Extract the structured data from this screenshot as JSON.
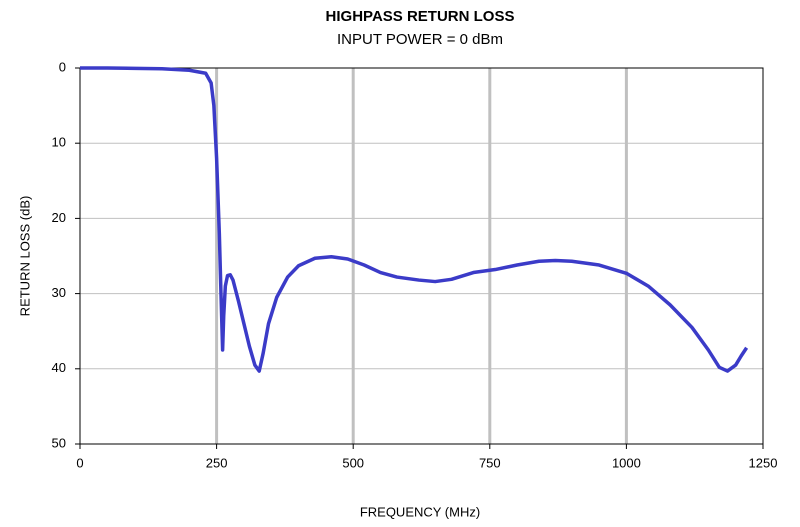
{
  "chart_data": {
    "type": "line",
    "title": "HIGHPASS RETURN LOSS",
    "subtitle": "INPUT POWER = 0 dBm",
    "x_label": "FREQUENCY (MHz)",
    "y_label": "RETURN LOSS (dB)",
    "x": [
      0,
      50,
      100,
      150,
      200,
      230,
      240,
      245,
      250,
      255,
      258,
      261,
      263,
      266,
      270,
      275,
      280,
      290,
      300,
      310,
      320,
      328,
      335,
      345,
      360,
      380,
      400,
      430,
      460,
      490,
      520,
      550,
      580,
      620,
      650,
      680,
      720,
      760,
      800,
      840,
      870,
      900,
      950,
      1000,
      1040,
      1080,
      1120,
      1150,
      1170,
      1185,
      1200,
      1210,
      1220
    ],
    "series": [
      {
        "name": "Return Loss",
        "color": "#3b3bc8",
        "values": [
          0,
          0,
          0.05,
          0.1,
          0.3,
          0.7,
          2,
          5,
          12,
          22,
          30,
          37.5,
          33,
          29,
          27.6,
          27.5,
          28.2,
          31,
          34,
          37,
          39.5,
          40.3,
          38,
          34,
          30.5,
          27.8,
          26.3,
          25.3,
          25.1,
          25.4,
          26.2,
          27.2,
          27.8,
          28.2,
          28.4,
          28.1,
          27.2,
          26.8,
          26.2,
          25.7,
          25.6,
          25.7,
          26.2,
          27.3,
          29,
          31.5,
          34.5,
          37.5,
          39.8,
          40.3,
          39.5,
          38.3,
          37.2
        ]
      }
    ],
    "xlim": [
      0,
      1250
    ],
    "xticks": [
      0,
      250,
      500,
      750,
      1000,
      1250
    ],
    "ylim": [
      50,
      0
    ],
    "yticks": [
      0,
      10,
      20,
      30,
      40,
      50
    ],
    "grid": true
  }
}
